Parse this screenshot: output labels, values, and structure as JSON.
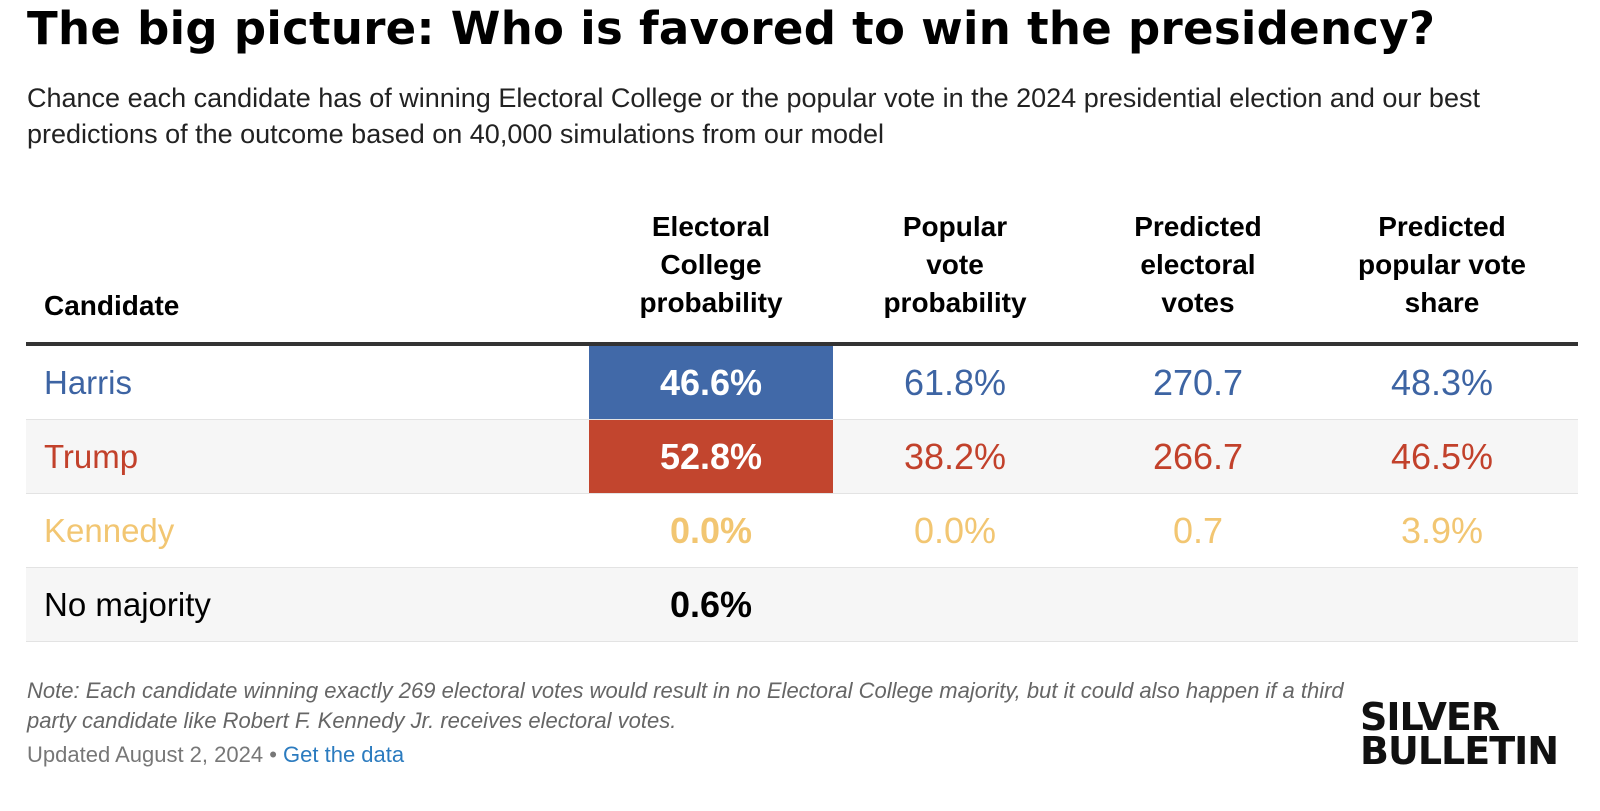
{
  "title": "The big picture: Who is favored to win the presidency?",
  "subtitle": "Chance each candidate has of winning Electoral College or the popular vote in the 2024 presidential election and our best predictions of the outcome based on 40,000 simulations from our model",
  "chart_data": {
    "type": "table",
    "columns": [
      "Candidate",
      "Electoral College probability",
      "Popular vote probability",
      "Predicted electoral votes",
      "Predicted popular vote share"
    ],
    "rows": [
      {
        "candidate": "Harris",
        "ec_prob": "46.6%",
        "pop_prob": "61.8%",
        "pred_ev": "270.7",
        "pred_share": "48.3%",
        "color": "#4169a8",
        "text_color": "#3d64a3",
        "ec_highlight": true
      },
      {
        "candidate": "Trump",
        "ec_prob": "52.8%",
        "pop_prob": "38.2%",
        "pred_ev": "266.7",
        "pred_share": "46.5%",
        "color": "#c2452e",
        "text_color": "#c2412b",
        "ec_highlight": true
      },
      {
        "candidate": "Kennedy",
        "ec_prob": "0.0%",
        "pop_prob": "0.0%",
        "pred_ev": "0.7",
        "pred_share": "3.9%",
        "color": "#f5c96e",
        "text_color": "#f2c672",
        "ec_highlight": false
      },
      {
        "candidate": "No majority",
        "ec_prob": "0.6%",
        "pop_prob": "",
        "pred_ev": "",
        "pred_share": "",
        "color": "#000000",
        "text_color": "#000000",
        "ec_highlight": false
      }
    ]
  },
  "note": "Note: Each candidate winning exactly 269 electoral votes would result in no Electoral College majority, but it could also happen if a third party candidate like Robert F. Kennedy Jr. receives electoral votes.",
  "updated": "Updated August 2, 2024 •",
  "get_data_link": "Get the data",
  "logo": {
    "line1": "SILVER",
    "line2": "BULLETIN"
  }
}
